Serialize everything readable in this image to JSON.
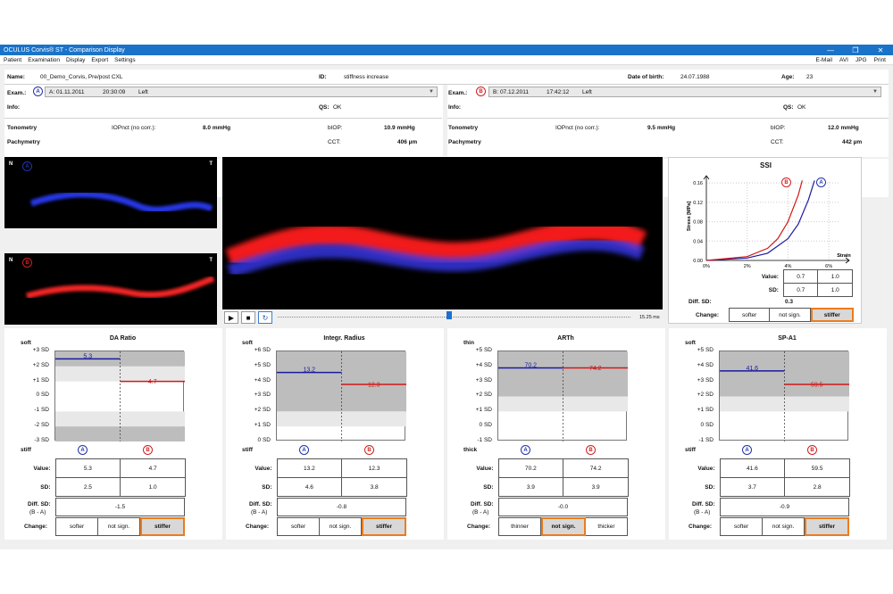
{
  "window": {
    "title": "OCULUS Corvis® ST - Comparison Display",
    "controls": [
      "—",
      "❐",
      "✕"
    ]
  },
  "menu": {
    "items": [
      "Patient",
      "Examination",
      "Display",
      "Export",
      "Settings"
    ],
    "right": [
      "E-Mail",
      "AVI",
      "JPG",
      "Print"
    ]
  },
  "patient": {
    "name_label": "Name:",
    "name": "00_Demo_Corvis, Pre/post CXL",
    "id_label": "ID:",
    "id": "stiffness increase",
    "dob_label": "Date of birth:",
    "dob": "24.07.1988",
    "age_label": "Age:",
    "age": "23"
  },
  "exams": [
    {
      "label": "Exam.:",
      "marker": "A",
      "code": "A: 01.11.2011",
      "time": "20:30:09",
      "eye": "Left",
      "info_label": "Info:",
      "qs_label": "QS:",
      "qs": "OK",
      "tonometry_label": "Tonometry",
      "iop_label": "IOPnct (no corr.):",
      "iop": "8.0 mmHg",
      "biop_label": "bIOP:",
      "biop": "10.9 mmHg",
      "pachy_label": "Pachymetry",
      "cct_label": "CCT:",
      "cct": "406 µm"
    },
    {
      "label": "Exam.:",
      "marker": "B",
      "code": "B: 07.12.2011",
      "time": "17:42:12",
      "eye": "Left",
      "info_label": "Info:",
      "qs_label": "QS:",
      "qs": "OK",
      "tonometry_label": "Tonometry",
      "iop_label": "IOPnct (no corr.):",
      "iop": "9.5 mmHg",
      "biop_label": "bIOP:",
      "biop": "12.0 mmHg",
      "pachy_label": "Pachymetry",
      "cct_label": "CCT:",
      "cct": "442 µm"
    }
  ],
  "images": {
    "thumb_a": {
      "nasal": "N",
      "temporal": "T",
      "marker": "A"
    },
    "thumb_b": {
      "nasal": "N",
      "temporal": "T",
      "marker": "B"
    },
    "timestamp": "15.25 ms"
  },
  "ssi": {
    "title": "SSI",
    "ylabel": "Stress [MPa]",
    "xlabel": "Strain",
    "yticks": [
      "0.16",
      "0.12",
      "0.08",
      "0.04",
      "0.00"
    ],
    "xticks": [
      "0%",
      "2%",
      "4%",
      "6%"
    ],
    "markers": [
      "B",
      "A"
    ],
    "rows": [
      {
        "label": "Value:",
        "a": "0.7",
        "b": "1.0"
      },
      {
        "label": "SD:",
        "a": "0.7",
        "b": "1.0"
      }
    ],
    "diff_label": "Diff. SD:",
    "diff": "0.3",
    "change_label": "Change:",
    "change": [
      "softer",
      "not sign.",
      "stiffer"
    ],
    "active": 2,
    "chart_data": {
      "type": "line",
      "series": [
        {
          "name": "A",
          "color": "#1a1aa0",
          "x": [
            0,
            2,
            3,
            4,
            4.5,
            5,
            5.3
          ],
          "y": [
            0,
            0.005,
            0.015,
            0.045,
            0.075,
            0.125,
            0.165
          ]
        },
        {
          "name": "B",
          "color": "#d01818",
          "x": [
            0,
            2,
            3,
            3.5,
            4,
            4.5,
            4.7
          ],
          "y": [
            0,
            0.008,
            0.025,
            0.045,
            0.08,
            0.135,
            0.165
          ]
        }
      ],
      "xlim": [
        0,
        7
      ],
      "ylim": [
        0,
        0.175
      ]
    }
  },
  "params": [
    {
      "title": "DA Ratio",
      "top_label": "soft",
      "bottom_label": "stiff",
      "yticks": [
        "+3 SD",
        "+2 SD",
        "+1 SD",
        "0 SD",
        "-1 SD",
        "-2 SD",
        "-3 SD"
      ],
      "value_a": "5.3",
      "value_b": "4.7",
      "sd_a": 2.5,
      "sd_b": 1.0,
      "rows": [
        {
          "label": "Value:",
          "a": "5.3",
          "b": "4.7"
        },
        {
          "label": "SD:",
          "a": "2.5",
          "b": "1.0"
        }
      ],
      "diff_label": "Diff. SD:",
      "diff_sub": "(B - A)",
      "diff": "-1.5",
      "change_label": "Change:",
      "change": [
        "softer",
        "not sign.",
        "stiffer"
      ],
      "active": 2
    },
    {
      "title": "Integr. Radius",
      "top_label": "soft",
      "bottom_label": "stiff",
      "yticks": [
        "+6 SD",
        "+5 SD",
        "+4 SD",
        "+3 SD",
        "+2 SD",
        "+1 SD",
        "0 SD"
      ],
      "value_a": "13.2",
      "value_b": "12.3",
      "sd_a": 4.6,
      "sd_b": 3.8,
      "rows": [
        {
          "label": "Value:",
          "a": "13.2",
          "b": "12.3"
        },
        {
          "label": "SD:",
          "a": "4.6",
          "b": "3.8"
        }
      ],
      "diff_label": "Diff. SD:",
      "diff_sub": "(B - A)",
      "diff": "-0.8",
      "change_label": "Change:",
      "change": [
        "softer",
        "not sign.",
        "stiffer"
      ],
      "active": 2
    },
    {
      "title": "ARTh",
      "top_label": "thin",
      "bottom_label": "thick",
      "yticks": [
        "+5 SD",
        "+4 SD",
        "+3 SD",
        "+2 SD",
        "+1 SD",
        "0 SD",
        "-1 SD"
      ],
      "value_a": "70.2",
      "value_b": "74.2",
      "sd_a": 3.9,
      "sd_b": 3.9,
      "rows": [
        {
          "label": "Value:",
          "a": "70.2",
          "b": "74.2"
        },
        {
          "label": "SD:",
          "a": "3.9",
          "b": "3.9"
        }
      ],
      "diff_label": "Diff. SD:",
      "diff_sub": "(B - A)",
      "diff": "-0.0",
      "change_label": "Change:",
      "change": [
        "thinner",
        "not sign.",
        "thicker"
      ],
      "active": 1
    },
    {
      "title": "SP-A1",
      "top_label": "soft",
      "bottom_label": "stiff",
      "yticks": [
        "+5 SD",
        "+4 SD",
        "+3 SD",
        "+2 SD",
        "+1 SD",
        "0 SD",
        "-1 SD"
      ],
      "value_a": "41.6",
      "value_b": "59.5",
      "sd_a": 3.7,
      "sd_b": 2.8,
      "rows": [
        {
          "label": "Value:",
          "a": "41.6",
          "b": "59.5"
        },
        {
          "label": "SD:",
          "a": "3.7",
          "b": "2.8"
        }
      ],
      "diff_label": "Diff. SD:",
      "diff_sub": "(B - A)",
      "diff": "-0.9",
      "change_label": "Change:",
      "change": [
        "softer",
        "not sign.",
        "stiffer"
      ],
      "active": 2
    }
  ]
}
